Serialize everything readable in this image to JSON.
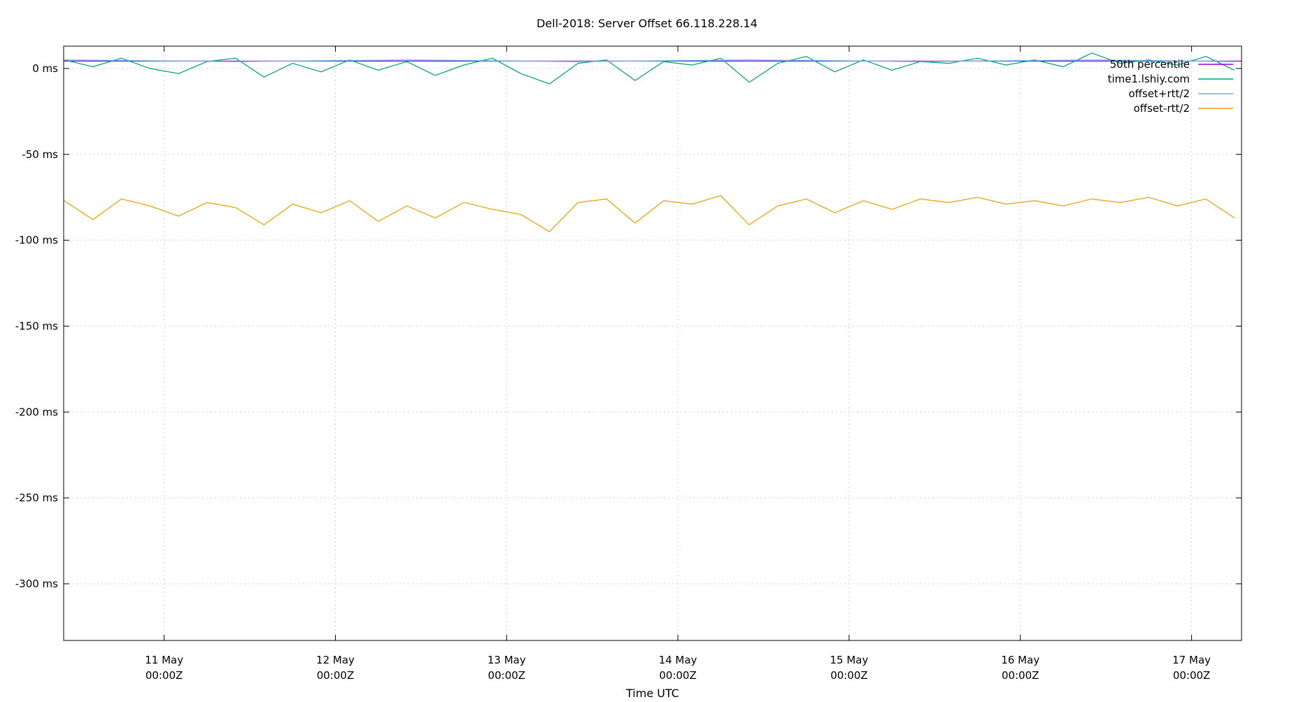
{
  "chart_data": {
    "type": "line",
    "title": "Dell-2018: Server Offset 66.118.228.14",
    "xlabel": "Time UTC",
    "ylabel": "",
    "grid": true,
    "legend_position": "top-right",
    "x_ticks": [
      {
        "date": "2018-05-11T00:00Z",
        "line1": "11 May",
        "line2": "00:00Z"
      },
      {
        "date": "2018-05-12T00:00Z",
        "line1": "12 May",
        "line2": "00:00Z"
      },
      {
        "date": "2018-05-13T00:00Z",
        "line1": "13 May",
        "line2": "00:00Z"
      },
      {
        "date": "2018-05-14T00:00Z",
        "line1": "14 May",
        "line2": "00:00Z"
      },
      {
        "date": "2018-05-15T00:00Z",
        "line1": "15 May",
        "line2": "00:00Z"
      },
      {
        "date": "2018-05-16T00:00Z",
        "line1": "16 May",
        "line2": "00:00Z"
      },
      {
        "date": "2018-05-17T00:00Z",
        "line1": "17 May",
        "line2": "00:00Z"
      }
    ],
    "xlim": [
      "2018-05-10T09:55Z",
      "2018-05-17T07:00Z"
    ],
    "y_ticks": [
      {
        "value": 0,
        "label": "0 ms"
      },
      {
        "value": -50,
        "label": "-50 ms"
      },
      {
        "value": -100,
        "label": "-100 ms"
      },
      {
        "value": -150,
        "label": "-150 ms"
      },
      {
        "value": -200,
        "label": "-200 ms"
      },
      {
        "value": -250,
        "label": "-250 ms"
      },
      {
        "value": -300,
        "label": "-300 ms"
      }
    ],
    "ylim": [
      -333,
      13
    ],
    "colors": {
      "percentile": "#9400d3",
      "server": "#009e73",
      "plus": "#56b4e9",
      "minus": "#e69f00"
    },
    "series": [
      {
        "name": "50th percentile",
        "kind": "constant",
        "value": 4.3,
        "x": [
          "2018-05-10T09:55Z",
          "2018-05-17T07:00Z"
        ],
        "values": [
          4.3,
          4.3
        ]
      },
      {
        "name": "time1.lshiy.com",
        "kind": "line",
        "x": [
          "2018-05-10T10:00Z",
          "2018-05-10T14:00Z",
          "2018-05-10T18:00Z",
          "2018-05-10T22:00Z",
          "2018-05-11T02:00Z",
          "2018-05-11T06:00Z",
          "2018-05-11T10:00Z",
          "2018-05-11T14:00Z",
          "2018-05-11T18:00Z",
          "2018-05-11T22:00Z",
          "2018-05-12T02:00Z",
          "2018-05-12T06:00Z",
          "2018-05-12T10:00Z",
          "2018-05-12T14:00Z",
          "2018-05-12T18:00Z",
          "2018-05-12T22:00Z",
          "2018-05-13T02:00Z",
          "2018-05-13T06:00Z",
          "2018-05-13T10:00Z",
          "2018-05-13T14:00Z",
          "2018-05-13T18:00Z",
          "2018-05-13T22:00Z",
          "2018-05-14T02:00Z",
          "2018-05-14T06:00Z",
          "2018-05-14T10:00Z",
          "2018-05-14T14:00Z",
          "2018-05-14T18:00Z",
          "2018-05-14T22:00Z",
          "2018-05-15T02:00Z",
          "2018-05-15T06:00Z",
          "2018-05-15T10:00Z",
          "2018-05-15T14:00Z",
          "2018-05-15T18:00Z",
          "2018-05-15T22:00Z",
          "2018-05-16T02:00Z",
          "2018-05-16T06:00Z",
          "2018-05-16T10:00Z",
          "2018-05-16T14:00Z",
          "2018-05-16T18:00Z",
          "2018-05-16T22:00Z",
          "2018-05-17T02:00Z",
          "2018-05-17T06:00Z"
        ],
        "values": [
          5,
          1,
          6,
          0,
          -3,
          4,
          6,
          -5,
          3,
          -2,
          5,
          -1,
          4,
          -4,
          2,
          6,
          -3,
          -9,
          3,
          5,
          -7,
          4,
          2,
          6,
          -8,
          3,
          7,
          -2,
          5,
          -1,
          4,
          3,
          6,
          2,
          5,
          1,
          9,
          3,
          5,
          2,
          7,
          -1
        ]
      },
      {
        "name": "offset+rtt/2",
        "kind": "line",
        "x": [
          "2018-05-10T10:00Z",
          "2018-05-11T10:00Z",
          "2018-05-12T10:00Z",
          "2018-05-13T10:00Z",
          "2018-05-14T10:00Z",
          "2018-05-15T10:00Z",
          "2018-05-16T10:00Z",
          "2018-05-17T06:00Z"
        ],
        "values": [
          5,
          4,
          5,
          4,
          5,
          4,
          5,
          4
        ]
      },
      {
        "name": "offset-rtt/2",
        "kind": "line",
        "x": [
          "2018-05-10T10:00Z",
          "2018-05-10T14:00Z",
          "2018-05-10T18:00Z",
          "2018-05-10T22:00Z",
          "2018-05-11T02:00Z",
          "2018-05-11T06:00Z",
          "2018-05-11T10:00Z",
          "2018-05-11T14:00Z",
          "2018-05-11T18:00Z",
          "2018-05-11T22:00Z",
          "2018-05-12T02:00Z",
          "2018-05-12T06:00Z",
          "2018-05-12T10:00Z",
          "2018-05-12T14:00Z",
          "2018-05-12T18:00Z",
          "2018-05-12T22:00Z",
          "2018-05-13T02:00Z",
          "2018-05-13T06:00Z",
          "2018-05-13T10:00Z",
          "2018-05-13T14:00Z",
          "2018-05-13T18:00Z",
          "2018-05-13T22:00Z",
          "2018-05-14T02:00Z",
          "2018-05-14T06:00Z",
          "2018-05-14T10:00Z",
          "2018-05-14T14:00Z",
          "2018-05-14T18:00Z",
          "2018-05-14T22:00Z",
          "2018-05-15T02:00Z",
          "2018-05-15T06:00Z",
          "2018-05-15T10:00Z",
          "2018-05-15T14:00Z",
          "2018-05-15T18:00Z",
          "2018-05-15T22:00Z",
          "2018-05-16T02:00Z",
          "2018-05-16T06:00Z",
          "2018-05-16T10:00Z",
          "2018-05-16T14:00Z",
          "2018-05-16T18:00Z",
          "2018-05-16T22:00Z",
          "2018-05-17T02:00Z",
          "2018-05-17T06:00Z"
        ],
        "values": [
          -77,
          -88,
          -76,
          -80,
          -86,
          -78,
          -81,
          -91,
          -79,
          -84,
          -77,
          -89,
          -80,
          -87,
          -78,
          -82,
          -85,
          -95,
          -78,
          -76,
          -90,
          -77,
          -79,
          -74,
          -91,
          -80,
          -76,
          -84,
          -77,
          -82,
          -76,
          -78,
          -75,
          -79,
          -77,
          -80,
          -76,
          -78,
          -75,
          -80,
          -76,
          -87
        ]
      }
    ]
  }
}
